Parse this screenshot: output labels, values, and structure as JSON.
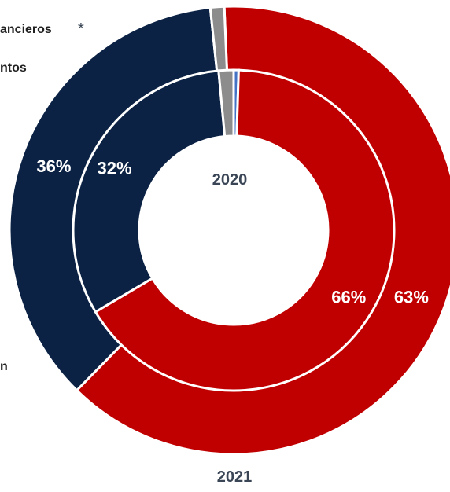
{
  "chart_data": {
    "type": "pie",
    "subtype": "nested-donut",
    "rings": [
      {
        "name": "2021",
        "position": "outer",
        "slices": [
          {
            "value": 63,
            "label": "63%",
            "color": "#c00000"
          },
          {
            "value": 36,
            "label": "36%",
            "color": "#0b2244"
          },
          {
            "value": 1,
            "label": "",
            "color": "#8c8c8c"
          }
        ]
      },
      {
        "name": "2020",
        "position": "inner",
        "slices": [
          {
            "value": 0.5,
            "label": "",
            "color": "#4472c4"
          },
          {
            "value": 66,
            "label": "66%",
            "color": "#c00000"
          },
          {
            "value": 32,
            "label": "32%",
            "color": "#0b2244"
          },
          {
            "value": 1.5,
            "label": "",
            "color": "#8c8c8c"
          }
        ]
      }
    ],
    "legend_fragments": [
      "ancieros",
      "*",
      "ntos",
      "n"
    ],
    "separator_color": "#ffffff"
  }
}
